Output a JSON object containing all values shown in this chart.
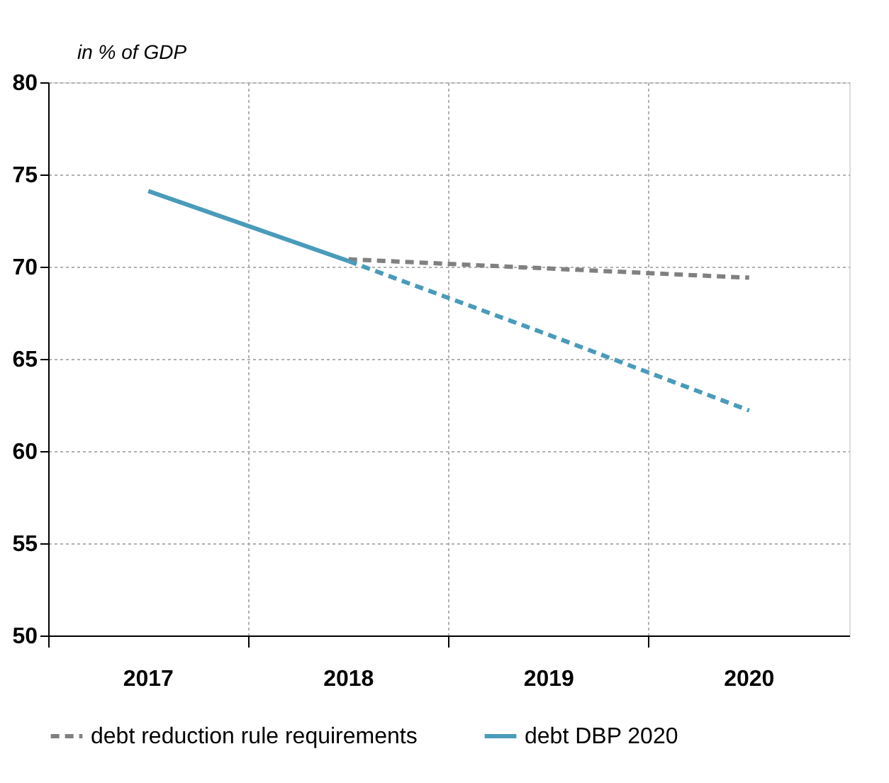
{
  "chart_data": {
    "type": "line",
    "ylabel": "in % of GDP",
    "categories": [
      "2017",
      "2018",
      "2019",
      "2020"
    ],
    "series": [
      {
        "name": "debt reduction rule requirements",
        "color": "#808080",
        "line_style": "dashed",
        "values": [
          null,
          70.4,
          69.9,
          69.4
        ]
      },
      {
        "color": "#4a9bba",
        "line_style": "dashed",
        "values": [
          null,
          70.3,
          66.3,
          62.2
        ]
      },
      {
        "name": "debt DBP 2020",
        "color": "#4a9bba",
        "line_style": "solid",
        "values": [
          74.1,
          70.3,
          null,
          null
        ]
      }
    ],
    "ylim": [
      50,
      80
    ],
    "yticks": [
      50,
      55,
      60,
      65,
      70,
      75,
      80
    ],
    "grid": true,
    "legend": "bottom",
    "marker": "none"
  }
}
